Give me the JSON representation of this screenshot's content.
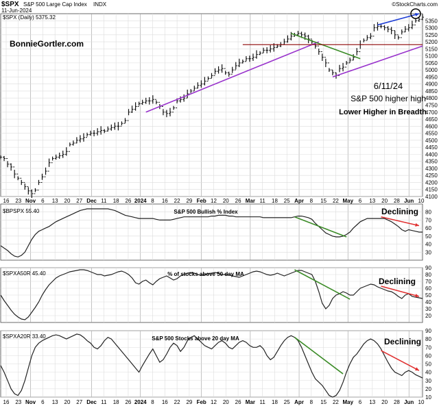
{
  "header": {
    "symbol": "$SPX",
    "description": "S&P 500 Large Cap Index",
    "exchange": "INDX",
    "date": "11-Jun-2024",
    "legend": "$SPX (Daily) 5375.32",
    "brand": "©StockCharts.com",
    "watermark": "BonnieGortler.com"
  },
  "colors": {
    "price": "#111111",
    "indicator": "#222222",
    "purple": "#9933cc",
    "green": "#3c8c28",
    "red": "#e03030",
    "darkred": "#8b0000",
    "blue": "#1f3fd6",
    "brand": "#2c8a1c"
  },
  "annotations": {
    "date_note": "6/11/24",
    "note_line2": "S&P 500 higher high",
    "note_line3": "Lower Higher in Breadth",
    "declining": "Declining"
  },
  "x_axis": {
    "labels": [
      "16",
      "23",
      "Nov",
      "6",
      "13",
      "20",
      "27",
      "Dec",
      "11",
      "18",
      "26",
      "2024",
      "8",
      "16",
      "22",
      "29",
      "Feb",
      "12",
      "20",
      "26",
      "Mar",
      "11",
      "18",
      "25",
      "Apr",
      "8",
      "15",
      "22",
      "May",
      "6",
      "13",
      "20",
      "28",
      "Jun",
      "10"
    ],
    "bold": [
      "Nov",
      "Dec",
      "2024",
      "Feb",
      "Mar",
      "Apr",
      "May",
      "Jun"
    ]
  },
  "chart_data": [
    {
      "type": "line",
      "title": "$SPX (Daily) 5375.32",
      "ylim": [
        4100,
        5400
      ],
      "y_ticks": [
        4100,
        4150,
        4200,
        4250,
        4300,
        4350,
        4400,
        4450,
        4500,
        4550,
        4600,
        4650,
        4700,
        4750,
        4800,
        4850,
        4900,
        4950,
        5000,
        5050,
        5100,
        5150,
        5200,
        5250,
        5300,
        5350
      ],
      "series": [
        {
          "values": [
            4380,
            4370,
            4330,
            4310,
            4260,
            4230,
            4200,
            4170,
            4140,
            4120,
            4145,
            4200,
            4240,
            4280,
            4340,
            4370,
            4380,
            4390,
            4400,
            4420,
            4470,
            4480,
            4500,
            4510,
            4520,
            4540,
            4550,
            4550,
            4560,
            4570,
            4565,
            4580,
            4590,
            4600,
            4600,
            4620,
            4640,
            4700,
            4720,
            4740,
            4760,
            4770,
            4780,
            4780,
            4790,
            4770,
            4740,
            4700,
            4690,
            4700,
            4730,
            4780,
            4790,
            4800,
            4830,
            4850,
            4870,
            4890,
            4900,
            4920,
            4940,
            4960,
            4990,
            5000,
            5010,
            4980,
            4970,
            5000,
            5030,
            5050,
            5060,
            5080,
            5080,
            5090,
            5110,
            5120,
            5140,
            5140,
            5150,
            5160,
            5170,
            5180,
            5200,
            5220,
            5240,
            5250,
            5260,
            5250,
            5240,
            5220,
            5200,
            5170,
            5130,
            5090,
            5050,
            5000,
            4980,
            4960,
            5010,
            5020,
            5050,
            5070,
            5090,
            5130,
            5180,
            5210,
            5230,
            5240,
            5300,
            5310,
            5310,
            5300,
            5290,
            5280,
            5250,
            5230,
            5270,
            5290,
            5300,
            5320,
            5350,
            5360,
            5375
          ]
        }
      ],
      "annotation_lines": [
        {
          "color": "purple",
          "points": [
            [
              42,
              4700
            ],
            [
              92,
              5200
            ]
          ]
        },
        {
          "color": "purple",
          "points": [
            [
              96,
              4950
            ],
            [
              122,
              5170
            ]
          ]
        },
        {
          "color": "green",
          "points": [
            [
              84,
              5260
            ],
            [
              104,
              5080
            ]
          ]
        },
        {
          "color": "darkred",
          "points": [
            [
              70,
              5180
            ],
            [
              122,
              5180
            ]
          ]
        },
        {
          "color": "blue",
          "points": [
            [
              109,
              5320
            ],
            [
              121,
              5400
            ]
          ]
        }
      ]
    },
    {
      "type": "line",
      "title": "S&P 500 Bullish % Index",
      "legend": "$BPSPX 55.40",
      "ylim": [
        20,
        90
      ],
      "y_ticks": [
        30,
        40,
        50,
        60,
        70,
        80
      ],
      "series": [
        {
          "values": [
            38,
            35,
            32,
            28,
            25,
            24,
            26,
            30,
            38,
            46,
            52,
            56,
            58,
            60,
            62,
            65,
            68,
            70,
            72,
            74,
            76,
            78,
            80,
            82,
            83,
            84,
            84,
            84,
            84,
            84,
            84,
            84,
            83,
            82,
            80,
            78,
            76,
            75,
            74,
            73,
            72,
            72,
            72,
            72,
            72,
            71,
            70,
            70,
            70,
            70,
            71,
            72,
            73,
            74,
            74,
            74,
            74,
            74,
            74,
            74,
            74,
            75,
            75,
            76,
            76,
            76,
            75,
            75,
            74,
            74,
            74,
            74,
            74,
            74,
            74,
            74,
            73,
            73,
            73,
            73,
            73,
            73,
            73,
            73,
            73,
            74,
            75,
            75,
            74,
            73,
            71,
            66,
            62,
            58,
            54,
            52,
            50,
            49,
            49,
            50,
            52,
            55,
            60,
            64,
            68,
            70,
            72,
            72,
            72,
            72,
            72,
            72,
            70,
            68,
            65,
            62,
            58,
            56,
            58,
            57,
            56,
            55,
            55
          ]
        }
      ],
      "annotation_lines": [
        {
          "color": "green",
          "points": [
            [
              85,
              74
            ],
            [
              100,
              49
            ]
          ]
        },
        {
          "color": "red",
          "points": [
            [
              110,
              74
            ],
            [
              121,
              63
            ]
          ]
        }
      ]
    },
    {
      "type": "line",
      "title": "% of stocks above 50 day MA",
      "legend": "$SPXA50R 45.40",
      "ylim": [
        10,
        90
      ],
      "y_ticks": [
        20,
        30,
        40,
        50,
        60,
        70,
        80,
        90
      ],
      "series": [
        {
          "values": [
            50,
            42,
            35,
            28,
            22,
            18,
            15,
            14,
            18,
            25,
            32,
            40,
            50,
            58,
            65,
            70,
            75,
            78,
            80,
            82,
            84,
            85,
            86,
            87,
            87,
            86,
            84,
            82,
            80,
            80,
            78,
            79,
            80,
            82,
            84,
            85,
            83,
            80,
            75,
            68,
            66,
            70,
            72,
            68,
            65,
            70,
            74,
            76,
            78,
            75,
            72,
            74,
            78,
            80,
            82,
            83,
            82,
            80,
            79,
            80,
            81,
            82,
            83,
            82,
            80,
            80,
            80,
            78,
            77,
            76,
            78,
            80,
            82,
            84,
            85,
            84,
            82,
            80,
            79,
            80,
            82,
            80,
            78,
            80,
            82,
            84,
            86,
            86,
            84,
            82,
            80,
            70,
            55,
            38,
            30,
            35,
            45,
            50,
            52,
            55,
            53,
            50,
            50,
            55,
            60,
            62,
            64,
            66,
            65,
            62,
            60,
            58,
            56,
            55,
            52,
            48,
            45,
            50,
            52,
            48,
            47,
            46,
            45
          ]
        }
      ],
      "annotation_lines": [
        {
          "color": "green",
          "points": [
            [
              85,
              87
            ],
            [
              101,
              44
            ]
          ]
        },
        {
          "color": "red",
          "points": [
            [
              110,
              63
            ],
            [
              121,
              48
            ]
          ]
        }
      ]
    },
    {
      "type": "line",
      "title": "S&P 500 Stocks above 20 day MA",
      "legend": "$SPXA20R 33.40",
      "ylim": [
        10,
        90
      ],
      "y_ticks": [
        10,
        20,
        30,
        40,
        50,
        60,
        70,
        80,
        90
      ],
      "series": [
        {
          "values": [
            48,
            40,
            30,
            20,
            14,
            12,
            18,
            30,
            45,
            60,
            70,
            75,
            78,
            80,
            82,
            84,
            85,
            84,
            82,
            80,
            82,
            84,
            86,
            85,
            82,
            78,
            75,
            70,
            68,
            72,
            78,
            82,
            80,
            75,
            70,
            65,
            60,
            55,
            50,
            45,
            40,
            48,
            55,
            62,
            68,
            60,
            52,
            55,
            62,
            70,
            75,
            72,
            65,
            70,
            78,
            82,
            84,
            80,
            76,
            72,
            70,
            68,
            72,
            76,
            78,
            75,
            70,
            68,
            72,
            76,
            78,
            76,
            72,
            70,
            70,
            72,
            68,
            60,
            55,
            58,
            65,
            72,
            78,
            82,
            84,
            82,
            78,
            70,
            60,
            50,
            40,
            32,
            28,
            24,
            18,
            12,
            10,
            12,
            18,
            28,
            40,
            50,
            58,
            62,
            68,
            74,
            78,
            80,
            78,
            74,
            68,
            60,
            52,
            45,
            40,
            38,
            36,
            40,
            42,
            40,
            37,
            35,
            33
          ]
        }
      ],
      "annotation_lines": [
        {
          "color": "green",
          "points": [
            [
              85,
              82
            ],
            [
              99,
              38
            ]
          ]
        },
        {
          "color": "red",
          "points": [
            [
              110,
              66
            ],
            [
              121,
              42
            ]
          ]
        }
      ]
    }
  ]
}
